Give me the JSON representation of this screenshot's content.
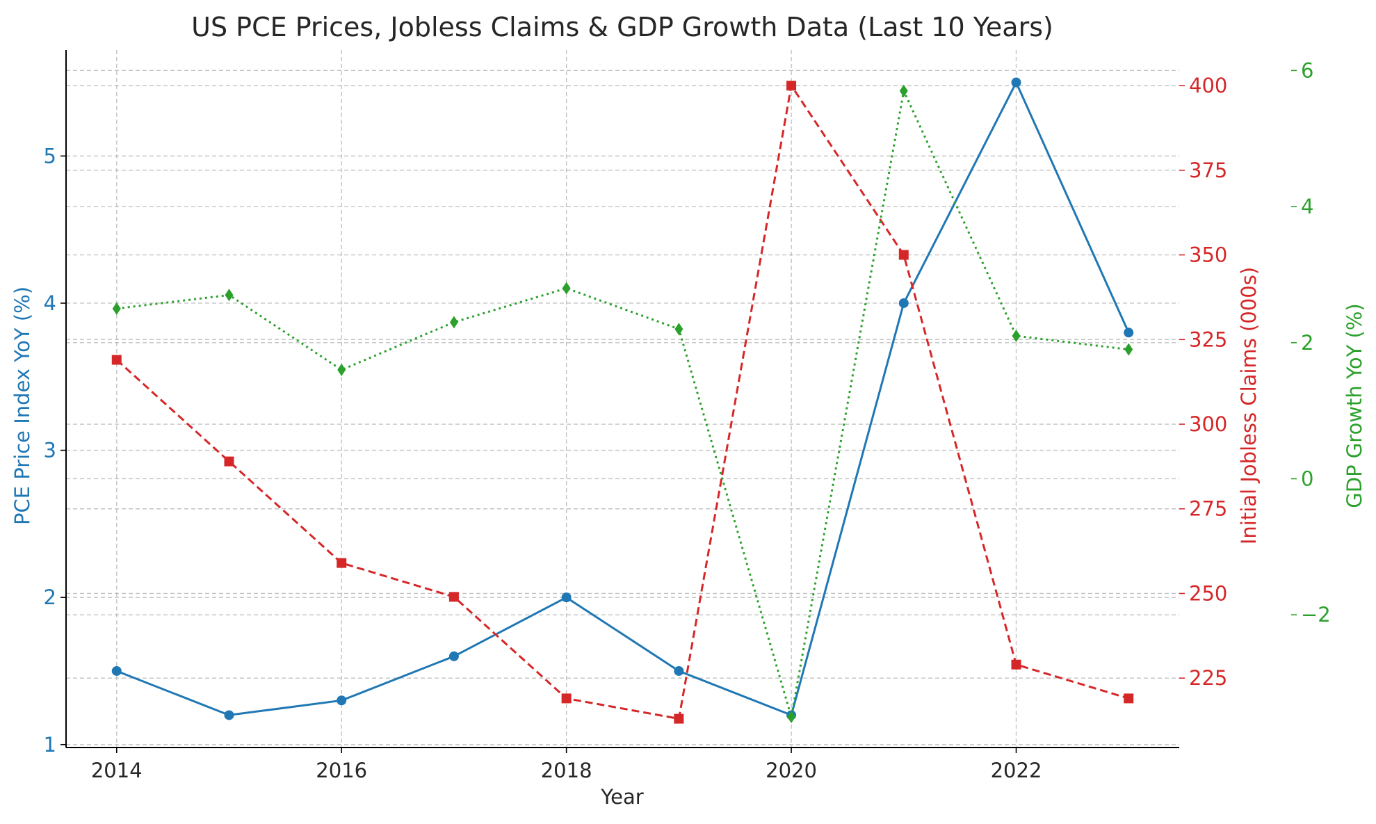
{
  "chart_data": {
    "type": "line",
    "title": "US PCE Prices, Jobless Claims & GDP Growth Data (Last 10 Years)",
    "xlabel": "Year",
    "x": [
      2014,
      2015,
      2016,
      2017,
      2018,
      2019,
      2020,
      2021,
      2022,
      2023
    ],
    "xlim": [
      2013.55,
      2023.45
    ],
    "xticks": [
      "2014",
      "2016",
      "2018",
      "2020",
      "2022"
    ],
    "grid": true,
    "axes": [
      {
        "id": "pce",
        "side": "left",
        "label": "PCE Price Index YoY (%)",
        "color": "#1f77b4",
        "ylim": [
          0.98,
          5.72
        ],
        "ticks": [
          1,
          2,
          3,
          4,
          5
        ],
        "tick_labels": [
          "1",
          "2",
          "3",
          "4",
          "5"
        ]
      },
      {
        "id": "claims",
        "side": "right",
        "label": "Initial Jobless Claims (000s)",
        "color": "#d62728",
        "ylim": [
          204.5,
          410.5
        ],
        "ticks": [
          225,
          250,
          275,
          300,
          325,
          350,
          375,
          400
        ],
        "tick_labels": [
          "225",
          "250",
          "275",
          "300",
          "325",
          "350",
          "375",
          "400"
        ]
      },
      {
        "id": "gdp",
        "side": "right-outer",
        "label": "GDP Growth YoY (%)",
        "color": "#2ca02c",
        "ylim": [
          -3.95,
          6.3
        ],
        "ticks": [
          -2,
          0,
          2,
          4,
          6
        ],
        "tick_labels": [
          "−2",
          "0",
          "2",
          "4",
          "6"
        ]
      }
    ],
    "series": [
      {
        "axis": "pce",
        "color": "#1f77b4",
        "linestyle": "solid",
        "marker": "circle",
        "values": [
          1.5,
          1.2,
          1.3,
          1.6,
          2.0,
          1.5,
          1.2,
          4.0,
          5.5,
          3.8
        ]
      },
      {
        "axis": "claims",
        "color": "#d62728",
        "linestyle": "dashed",
        "marker": "square",
        "values": [
          319,
          289,
          259,
          249,
          219,
          213,
          400,
          350,
          229,
          219
        ]
      },
      {
        "axis": "gdp",
        "color": "#2ca02c",
        "linestyle": "dotted",
        "marker": "diamond",
        "values": [
          2.5,
          2.7,
          1.6,
          2.3,
          2.8,
          2.2,
          -3.5,
          5.7,
          2.1,
          1.9
        ]
      }
    ]
  }
}
